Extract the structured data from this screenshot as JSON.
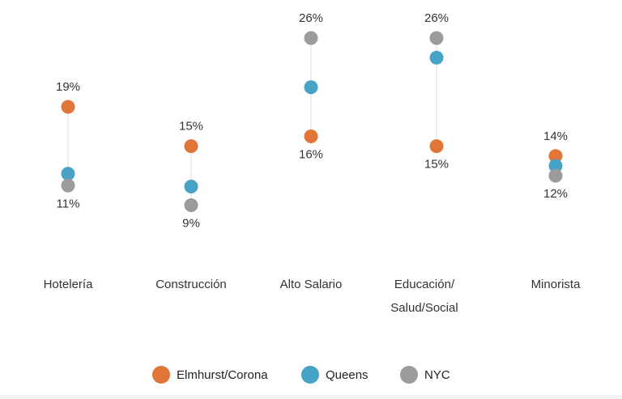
{
  "chart_data": {
    "type": "dot-range",
    "categories": [
      "Hotelería",
      "Construcción",
      "Alto Salario",
      "Educación/\nSalud/Social",
      "Minorista"
    ],
    "series": [
      {
        "name": "Elmhurst/Corona",
        "color": "#e07537",
        "values": [
          19,
          15,
          16,
          15,
          14
        ]
      },
      {
        "name": "Queens",
        "color": "#46a3c6",
        "values": [
          12.2,
          10.9,
          21.0,
          24.0,
          13.0
        ]
      },
      {
        "name": "NYC",
        "color": "#9b9b9e",
        "values": [
          11,
          9,
          26,
          26,
          12
        ]
      }
    ],
    "labels": [
      {
        "category": 0,
        "top": "19%",
        "bottom": "11%"
      },
      {
        "category": 1,
        "top": "15%",
        "bottom": "9%"
      },
      {
        "category": 2,
        "top": "26%",
        "bottom": "16%"
      },
      {
        "category": 3,
        "top": "26%",
        "bottom": "15%"
      },
      {
        "category": 4,
        "top": "14%",
        "bottom": "12%"
      }
    ],
    "ylim": [
      6,
      26
    ],
    "grid": false,
    "legend_position": "bottom"
  },
  "legend": [
    {
      "label": "Elmhurst/Corona",
      "color": "#e07537"
    },
    {
      "label": "Queens",
      "color": "#46a3c6"
    },
    {
      "label": "NYC",
      "color": "#9b9b9e"
    }
  ]
}
